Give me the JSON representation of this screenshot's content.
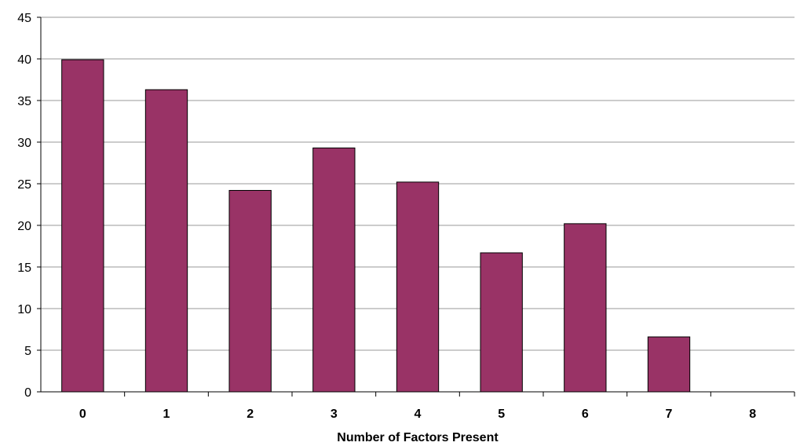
{
  "chart_data": {
    "type": "bar",
    "title": "",
    "xlabel": "Number of Factors Present",
    "ylabel": "",
    "categories": [
      "0",
      "1",
      "2",
      "3",
      "4",
      "5",
      "6",
      "7",
      "8"
    ],
    "values": [
      39.9,
      36.3,
      24.2,
      29.3,
      25.2,
      16.7,
      20.2,
      6.6,
      0
    ],
    "ylim": [
      0,
      45
    ],
    "yticks": [
      "0",
      "5",
      "10",
      "15",
      "20",
      "25",
      "30",
      "35",
      "40",
      "45"
    ],
    "grid": true,
    "legend": "none",
    "colors": {
      "bar": "#993366",
      "grid": "#9a9a9a",
      "axis": "#000000"
    }
  }
}
